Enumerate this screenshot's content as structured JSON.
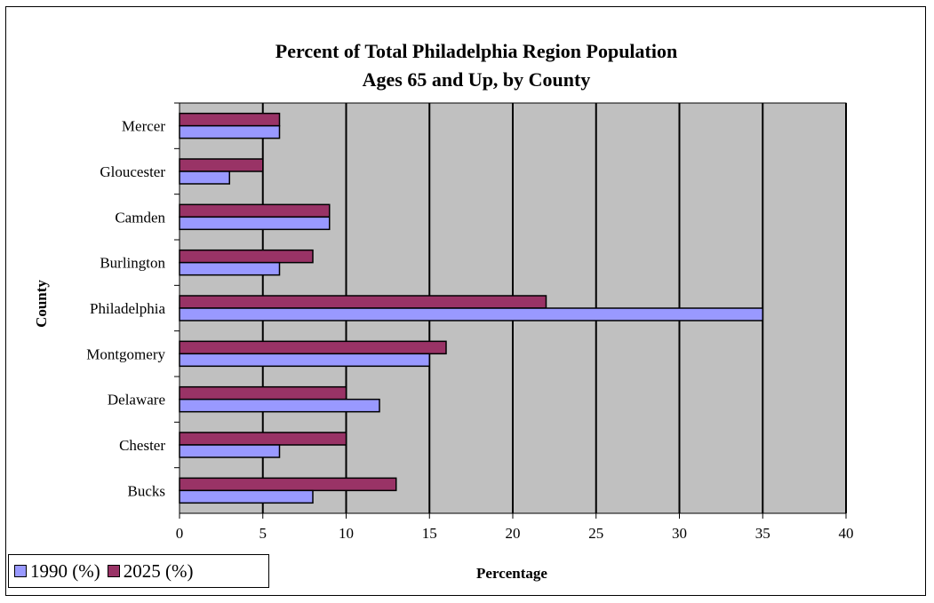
{
  "chart_data": {
    "type": "bar",
    "orientation": "horizontal",
    "title": [
      "Percent of Total Philadelphia Region Population",
      "Ages 65 and Up, by County"
    ],
    "xlabel": "Percentage",
    "ylabel": "County",
    "categories": [
      "Bucks",
      "Chester",
      "Delaware",
      "Montgomery",
      "Philadelphia",
      "Burlington",
      "Camden",
      "Gloucester",
      "Mercer"
    ],
    "series": [
      {
        "name": "1990 (%)",
        "color": "#9999ff",
        "values": [
          8,
          6,
          12,
          15,
          35,
          6,
          9,
          3,
          6
        ]
      },
      {
        "name": "2025 (%)",
        "color": "#993366",
        "values": [
          13,
          10,
          10,
          16,
          22,
          8,
          9,
          5,
          6
        ]
      }
    ],
    "xlim": [
      0,
      40
    ],
    "xticks": [
      0,
      5,
      10,
      15,
      20,
      25,
      30,
      35,
      40
    ],
    "grid": true,
    "plot_background": "#c0c0c0",
    "legend_position": "bottom-left"
  }
}
